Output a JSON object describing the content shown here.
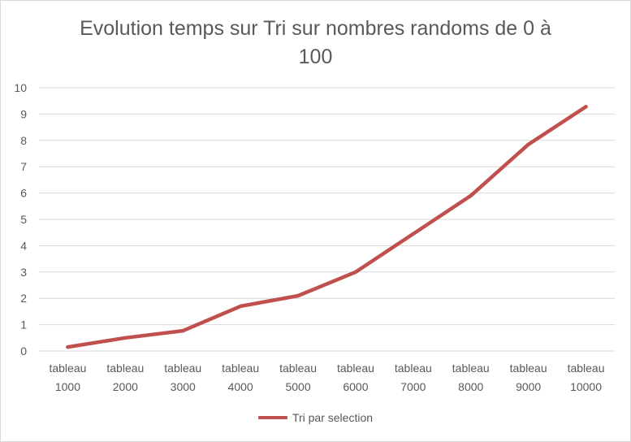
{
  "chart_data": {
    "type": "line",
    "title": "Evolution temps sur Tri sur nombres randoms de 0 à 100",
    "xlabel": "",
    "ylabel": "",
    "categories": [
      "tableau 1000",
      "tableau 2000",
      "tableau 3000",
      "tableau 4000",
      "tableau 5000",
      "tableau 6000",
      "tableau 7000",
      "tableau 8000",
      "tableau 9000",
      "tableau 10000"
    ],
    "series": [
      {
        "name": "Tri par selection",
        "color": "#c0504d",
        "values": [
          0.15,
          0.5,
          0.77,
          1.7,
          2.1,
          3.0,
          4.45,
          5.9,
          7.85,
          9.28
        ]
      }
    ],
    "ylim": [
      0,
      10
    ],
    "yticks": [
      0,
      1,
      2,
      3,
      4,
      5,
      6,
      7,
      8,
      9,
      10
    ],
    "grid": true,
    "legend_position": "bottom"
  }
}
